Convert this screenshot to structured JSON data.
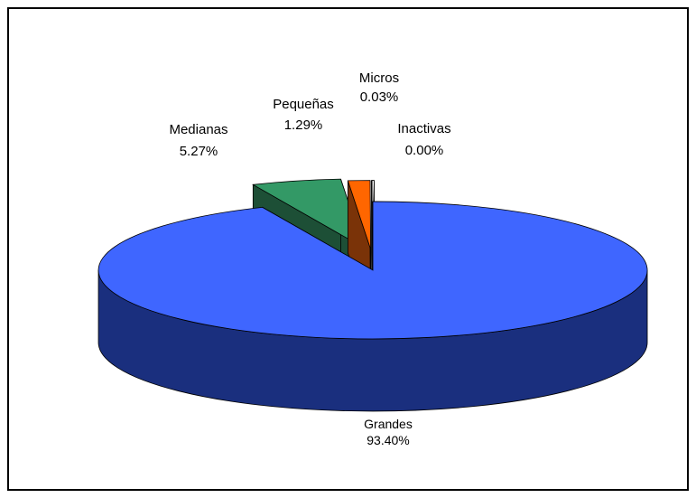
{
  "chart_data": {
    "type": "pie",
    "subtype": "3d-exploded",
    "categories": [
      "Grandes",
      "Medianas",
      "Pequeñas",
      "Micros",
      "Inactivas"
    ],
    "values": [
      93.4,
      5.27,
      1.29,
      0.03,
      0.0
    ],
    "value_labels": [
      "93.40%",
      "5.27%",
      "1.29%",
      "0.03%",
      "0.00%"
    ],
    "colors": {
      "Grandes": {
        "top": "#3f66ff",
        "side": "#1a2f7e"
      },
      "Medianas": {
        "top": "#339966",
        "side": "#1d4f36"
      },
      "Pequeñas": {
        "top": "#ff6600",
        "side": "#7a3308"
      },
      "Micros": {
        "top": "#ffffff",
        "side": "#cccccc"
      },
      "Inactivas": {
        "top": "#ffffff",
        "side": "#cccccc"
      }
    },
    "legend": "none"
  }
}
